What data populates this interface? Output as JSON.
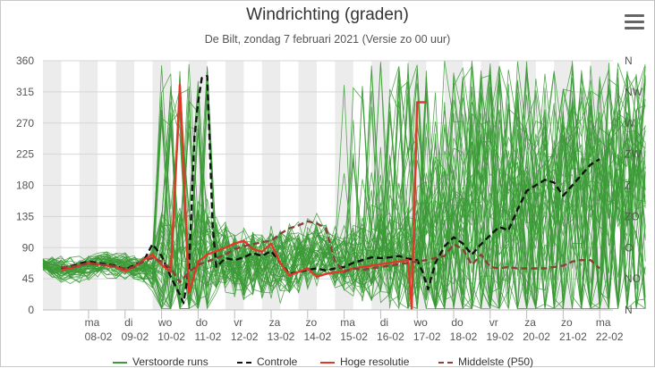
{
  "title": "Windrichting (graden)",
  "subtitle": "De Bilt, zondag 7 februari 2021 (Versie zo 00 uur)",
  "menu_icon": "hamburger-menu-icon",
  "chart_data": {
    "type": "line",
    "title": "Windrichting (graden)",
    "subtitle": "De Bilt, zondag 7 februari 2021 (Versie zo 00 uur)",
    "y_left_ticks": [
      0,
      45,
      90,
      135,
      180,
      225,
      270,
      315,
      360
    ],
    "ylim": [
      0,
      360
    ],
    "y_right_ticks": [
      {
        "value": 0,
        "label": "N"
      },
      {
        "value": 45,
        "label": "NO"
      },
      {
        "value": 90,
        "label": "O"
      },
      {
        "value": 135,
        "label": "ZO"
      },
      {
        "value": 180,
        "label": "Z"
      },
      {
        "value": 225,
        "label": "ZW"
      },
      {
        "value": 270,
        "label": "W"
      },
      {
        "value": 315,
        "label": "NW"
      },
      {
        "value": 360,
        "label": "N"
      }
    ],
    "x_day_range": [
      0,
      15.25
    ],
    "x_ticks": [
      {
        "day": 0,
        "weekday": "ma",
        "date": "08-02"
      },
      {
        "day": 1,
        "weekday": "di",
        "date": "09-02"
      },
      {
        "day": 2,
        "weekday": "wo",
        "date": "10-02"
      },
      {
        "day": 3,
        "weekday": "do",
        "date": "11-02"
      },
      {
        "day": 4,
        "weekday": "vr",
        "date": "12-02"
      },
      {
        "day": 5,
        "weekday": "za",
        "date": "13-02"
      },
      {
        "day": 6,
        "weekday": "zo",
        "date": "14-02"
      },
      {
        "day": 7,
        "weekday": "ma",
        "date": "15-02"
      },
      {
        "day": 8,
        "weekday": "di",
        "date": "16-02"
      },
      {
        "day": 9,
        "weekday": "wo",
        "date": "17-02"
      },
      {
        "day": 10,
        "weekday": "do",
        "date": "18-02"
      },
      {
        "day": 11,
        "weekday": "vr",
        "date": "19-02"
      },
      {
        "day": 12,
        "weekday": "za",
        "date": "20-02"
      },
      {
        "day": 13,
        "weekday": "zo",
        "date": "21-02"
      },
      {
        "day": 14,
        "weekday": "ma",
        "date": "22-02"
      }
    ],
    "night_shading": true,
    "grid": true,
    "legend_position": "bottom",
    "series": [
      {
        "name": "Controle",
        "color": "#111111",
        "dash": "dashed",
        "x": [
          -0.75,
          -0.5,
          -0.25,
          0,
          0.25,
          0.5,
          0.75,
          1,
          1.25,
          1.5,
          1.75,
          2,
          2.25,
          2.5,
          2.6,
          2.75,
          2.9,
          3,
          3.1,
          3.25,
          3.4,
          3.5,
          3.75,
          4,
          4.25,
          4.5,
          4.75,
          5,
          5.25,
          5.5,
          5.75,
          6,
          6.25,
          6.5,
          6.75,
          7,
          7.25,
          7.5,
          7.75,
          8,
          8.25,
          8.5,
          8.75,
          9,
          9.15,
          9.3,
          9.5,
          9.75,
          10,
          10.25,
          10.5,
          10.75,
          11,
          11.25,
          11.5,
          11.75,
          12,
          12.25,
          12.5,
          12.75,
          13,
          13.25,
          13.5,
          13.75,
          14
        ],
        "y": [
          60,
          63,
          67,
          70,
          68,
          66,
          64,
          58,
          65,
          70,
          95,
          78,
          48,
          22,
          10,
          60,
          250,
          300,
          335,
          338,
          120,
          62,
          75,
          72,
          76,
          82,
          78,
          85,
          68,
          52,
          55,
          58,
          60,
          57,
          60,
          62,
          68,
          72,
          76,
          75,
          76,
          78,
          74,
          72,
          55,
          30,
          68,
          92,
          105,
          96,
          80,
          95,
          108,
          120,
          115,
          145,
          172,
          180,
          188,
          184,
          165,
          180,
          195,
          210,
          218
        ]
      },
      {
        "name": "Hoge resolutie",
        "color": "#e0382a",
        "dash": "solid",
        "x": [
          -0.75,
          -0.5,
          -0.25,
          0,
          0.25,
          0.5,
          0.75,
          1,
          1.25,
          1.5,
          1.75,
          2,
          2.25,
          2.4,
          2.5,
          2.6,
          2.75,
          3,
          3.25,
          3.5,
          3.75,
          4,
          4.25,
          4.5,
          4.75,
          5,
          5.25,
          5.5,
          5.75,
          6,
          6.25,
          6.5,
          6.75,
          7,
          7.25,
          7.5,
          7.75,
          8,
          8.25,
          8.5,
          8.75,
          8.85,
          9,
          9.25
        ],
        "y": [
          58,
          60,
          64,
          68,
          66,
          64,
          62,
          56,
          62,
          72,
          80,
          65,
          55,
          215,
          325,
          210,
          25,
          70,
          80,
          85,
          90,
          96,
          100,
          88,
          84,
          96,
          68,
          50,
          55,
          60,
          48,
          52,
          54,
          56,
          60,
          62,
          64,
          66,
          68,
          70,
          72,
          2,
          300,
          300
        ]
      },
      {
        "name": "Middelste (P50)",
        "color": "#8a3f3a",
        "dash": "dashed",
        "x": [
          -0.75,
          -0.5,
          -0.25,
          0,
          0.25,
          0.5,
          0.75,
          1,
          1.25,
          1.5,
          1.75,
          2,
          2.25,
          2.5,
          2.75,
          3,
          3.25,
          3.5,
          3.75,
          4,
          4.25,
          4.5,
          4.75,
          5,
          5.25,
          5.5,
          5.75,
          6,
          6.25,
          6.5,
          6.75,
          7,
          7.25,
          7.5,
          7.75,
          8,
          8.25,
          8.5,
          8.75,
          9,
          9.25,
          9.5,
          9.75,
          10,
          10.25,
          10.5,
          10.75,
          11,
          11.25,
          11.5,
          11.75,
          12,
          12.25,
          12.5,
          12.75,
          13,
          13.25,
          13.5,
          13.75,
          14
        ],
        "y": [
          62,
          62,
          65,
          67,
          66,
          65,
          63,
          60,
          62,
          70,
          75,
          70,
          60,
          40,
          55,
          65,
          70,
          75,
          80,
          88,
          92,
          95,
          98,
          100,
          110,
          118,
          122,
          128,
          125,
          118,
          70,
          55,
          60,
          58,
          60,
          62,
          64,
          66,
          68,
          70,
          72,
          75,
          78,
          95,
          88,
          65,
          80,
          62,
          60,
          62,
          60,
          60,
          60,
          60,
          62,
          64,
          70,
          72,
          72,
          60
        ]
      }
    ],
    "legend": [
      {
        "label": "Verstoorde runs",
        "color": "#3a9a35",
        "dash": "solid"
      },
      {
        "label": "Controle",
        "color": "#111111",
        "dash": "dashed"
      },
      {
        "label": "Hoge resolutie",
        "color": "#e0382a",
        "dash": "solid"
      },
      {
        "label": "Middelste (P50)",
        "color": "#8a3f3a",
        "dash": "dashed"
      }
    ],
    "ensemble_color": "#3a9a35",
    "ensemble_member_count": 50
  }
}
